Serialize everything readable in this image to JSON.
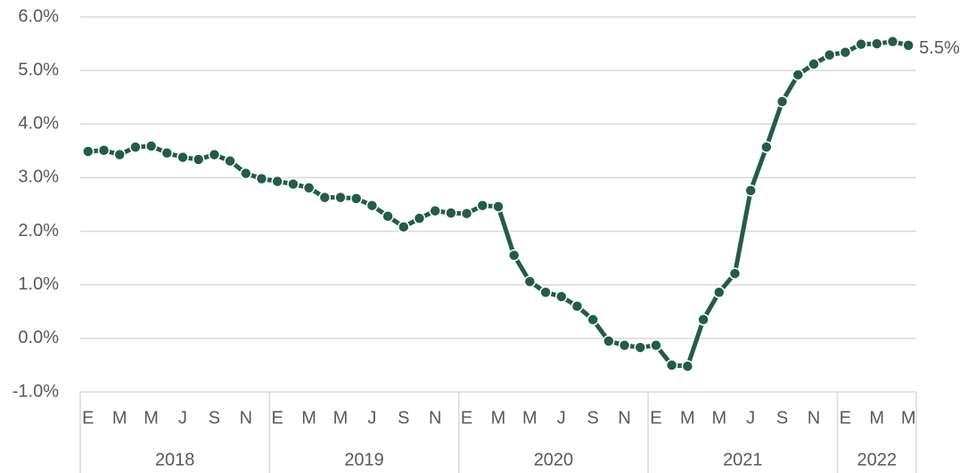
{
  "chart_data": {
    "type": "line",
    "categories": [
      "E",
      null,
      "M",
      null,
      "M",
      null,
      "J",
      null,
      "S",
      null,
      "N",
      null,
      "E",
      null,
      "M",
      null,
      "M",
      null,
      "J",
      null,
      "S",
      null,
      "N",
      null,
      "E",
      null,
      "M",
      null,
      "M",
      null,
      "J",
      null,
      "S",
      null,
      "N",
      null,
      "E",
      null,
      "M",
      null,
      "M",
      null,
      "J",
      null,
      "S",
      null,
      "N",
      null,
      "E",
      null,
      "M",
      null,
      "M"
    ],
    "years": [
      "2018",
      "2019",
      "2020",
      "2021",
      "2022"
    ],
    "series": [
      {
        "color": "#235c4a",
        "values": [
          3.49,
          3.51,
          3.43,
          3.57,
          3.59,
          3.46,
          3.38,
          3.34,
          3.43,
          3.31,
          3.08,
          2.98,
          2.93,
          2.88,
          2.81,
          2.63,
          2.63,
          2.61,
          2.48,
          2.28,
          2.08,
          2.24,
          2.38,
          2.34,
          2.33,
          2.48,
          2.46,
          1.55,
          1.06,
          0.86,
          0.78,
          0.6,
          0.35,
          -0.05,
          -0.13,
          -0.17,
          -0.13,
          -0.5,
          -0.52,
          0.35,
          0.86,
          1.21,
          2.76,
          3.57,
          4.42,
          4.92,
          5.12,
          5.29,
          5.34,
          5.49,
          5.5,
          5.54,
          5.47
        ],
        "value_labels": [
          null,
          null,
          null,
          null,
          null,
          null,
          null,
          null,
          null,
          null,
          null,
          null,
          null,
          null,
          null,
          null,
          null,
          null,
          null,
          null,
          null,
          null,
          null,
          null,
          null,
          null,
          null,
          null,
          null,
          null,
          null,
          null,
          null,
          null,
          null,
          null,
          null,
          null,
          null,
          null,
          null,
          null,
          null,
          null,
          null,
          null,
          null,
          null,
          null,
          null,
          null,
          null,
          "5.5%"
        ]
      }
    ],
    "ylim": [
      -1,
      6
    ],
    "yticks": [
      {
        "value": -1,
        "label": "-1.0%"
      },
      {
        "value": 0,
        "label": "0.0%"
      },
      {
        "value": 1,
        "label": "1.0%"
      },
      {
        "value": 2,
        "label": "2.0%"
      },
      {
        "value": 3,
        "label": "3.0%"
      },
      {
        "value": 4,
        "label": "4.0%"
      },
      {
        "value": 5,
        "label": "5.0%"
      },
      {
        "value": 6,
        "label": "6.0%"
      }
    ],
    "grid": true
  }
}
